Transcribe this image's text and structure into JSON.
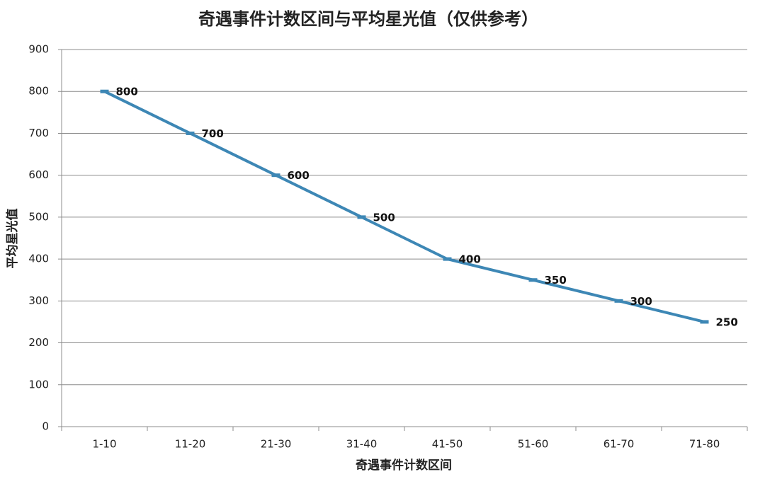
{
  "chart_data": {
    "type": "line",
    "title": "奇遇事件计数区间与平均星光值（仅供参考）",
    "x_label": "奇遇事件计数区间",
    "y_label": "平均星光值",
    "categories": [
      "1-10",
      "11-20",
      "21-30",
      "31-40",
      "41-50",
      "51-60",
      "61-70",
      "71-80"
    ],
    "series": [
      {
        "name": "平均星光值",
        "color": "#3d87b5",
        "values": [
          800,
          700,
          600,
          500,
          400,
          350,
          300,
          250
        ]
      }
    ],
    "ylim": [
      0,
      900
    ],
    "yticks": [
      0,
      100,
      200,
      300,
      400,
      500,
      600,
      700,
      800,
      900
    ],
    "grid": true,
    "legend": false
  }
}
